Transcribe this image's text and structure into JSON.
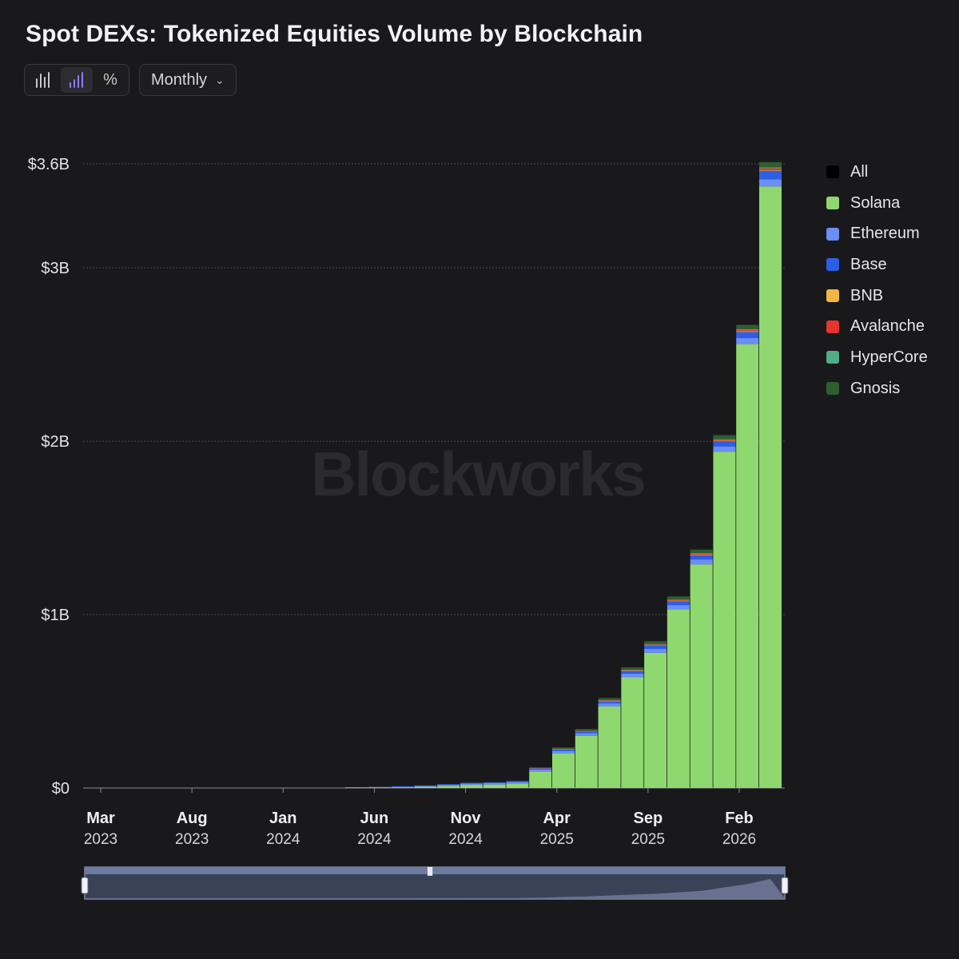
{
  "title": "Spot DEXs: Tokenized Equities Volume by Blockchain",
  "toolbar": {
    "icons": [
      "bar-chart-icon",
      "stacked-bar-icon",
      "percent-icon"
    ],
    "active_index": 1,
    "percent_glyph": "%",
    "interval": "Monthly"
  },
  "watermark": "Blockworks",
  "colors": {
    "All": "#000000",
    "Solana": "#8fd86f",
    "Ethereum": "#6b8ef7",
    "Base": "#2e5ee6",
    "BNB": "#f2b543",
    "Avalanche": "#e8342e",
    "HyperCore": "#4fae86",
    "Gnosis": "#2d5e2f"
  },
  "chart_data": {
    "type": "bar",
    "stacked": true,
    "yaxis": {
      "ticks": [
        0,
        1,
        2,
        3,
        3.6
      ],
      "tick_labels": [
        "$0",
        "$1B",
        "$2B",
        "$3B",
        "$3.6B"
      ],
      "range": [
        0,
        3.6
      ],
      "unit": "B USD"
    },
    "xaxis": {
      "ticks": [
        {
          "month": "Mar",
          "year": "2023",
          "index": 0
        },
        {
          "month": "Aug",
          "year": "2023",
          "index": 5
        },
        {
          "month": "Jan",
          "year": "2024",
          "index": 10
        },
        {
          "month": "Jun",
          "year": "2024",
          "index": 15
        },
        {
          "month": "Nov",
          "year": "2024",
          "index": 20
        },
        {
          "month": "Apr",
          "year": "2025",
          "index": 25
        },
        {
          "month": "Sep",
          "year": "2025",
          "index": 30
        },
        {
          "month": "Feb",
          "year": "2026",
          "index": 35
        }
      ]
    },
    "categories": [
      "2023-03",
      "2023-04",
      "2023-05",
      "2023-06",
      "2023-07",
      "2023-08",
      "2023-09",
      "2023-10",
      "2023-11",
      "2023-12",
      "2024-01",
      "2024-02",
      "2024-03",
      "2024-04",
      "2024-05",
      "2024-06",
      "2024-07",
      "2024-08",
      "2024-09",
      "2024-10",
      "2024-11",
      "2024-12",
      "2025-01",
      "2025-02",
      "2025-03",
      "2025-04",
      "2025-05",
      "2025-06",
      "2025-07",
      "2025-08",
      "2025-09",
      "2025-10",
      "2025-11",
      "2025-12",
      "2026-01",
      "2026-02",
      "2026-03"
    ],
    "series": [
      {
        "name": "Solana",
        "values": [
          0,
          0,
          0,
          0,
          0,
          0,
          0,
          0,
          0,
          0,
          0,
          0,
          0,
          0,
          0,
          0.001,
          0.002,
          0.004,
          0.007,
          0.012,
          0.018,
          0.02,
          0.025,
          0.095,
          0.2,
          0.3,
          0.47,
          0.64,
          0.78,
          1.03,
          1.29,
          1.94,
          2.56,
          3.47,
          null,
          null,
          null
        ]
      },
      {
        "name": "Ethereum",
        "values": [
          0,
          0,
          0,
          0,
          0,
          0,
          0,
          0,
          0,
          0,
          0,
          0,
          0,
          0,
          0,
          0,
          0.001,
          0.002,
          0.004,
          0.006,
          0.008,
          0.009,
          0.01,
          0.012,
          0.014,
          0.016,
          0.018,
          0.02,
          0.022,
          0.025,
          0.028,
          0.03,
          0.035,
          0.04,
          null,
          null,
          null
        ]
      },
      {
        "name": "Base",
        "values": [
          0,
          0,
          0,
          0,
          0,
          0,
          0,
          0,
          0,
          0,
          0,
          0,
          0,
          0,
          0,
          0,
          0,
          0.001,
          0.002,
          0.003,
          0.003,
          0.004,
          0.005,
          0.006,
          0.008,
          0.01,
          0.012,
          0.015,
          0.02,
          0.022,
          0.025,
          0.03,
          0.035,
          0.05,
          null,
          null,
          null
        ]
      },
      {
        "name": "BNB",
        "values": [
          0,
          0,
          0,
          0,
          0,
          0,
          0,
          0,
          0,
          0,
          0,
          0,
          0,
          0,
          0,
          0,
          0,
          0,
          0,
          0,
          0,
          0,
          0,
          0.001,
          0.001,
          0.001,
          0.002,
          0.002,
          0.002,
          0.003,
          0.003,
          0.003,
          0.004,
          0.004,
          null,
          null,
          null
        ]
      },
      {
        "name": "Avalanche",
        "values": [
          0,
          0,
          0,
          0,
          0,
          0,
          0,
          0,
          0,
          0,
          0,
          0,
          0,
          0,
          0,
          0,
          0,
          0,
          0,
          0,
          0,
          0,
          0,
          0.001,
          0.002,
          0.002,
          0.003,
          0.003,
          0.004,
          0.004,
          0.005,
          0.006,
          0.007,
          0.01,
          null,
          null,
          null
        ]
      },
      {
        "name": "HyperCore",
        "values": [
          0,
          0,
          0,
          0,
          0,
          0,
          0,
          0,
          0,
          0,
          0,
          0,
          0,
          0,
          0,
          0,
          0,
          0,
          0,
          0,
          0,
          0,
          0,
          0,
          0.001,
          0.001,
          0.002,
          0.002,
          0.003,
          0.003,
          0.004,
          0.004,
          0.005,
          0.006,
          null,
          null,
          null
        ]
      },
      {
        "name": "Gnosis",
        "values": [
          0,
          0,
          0,
          0,
          0,
          0,
          0,
          0,
          0,
          0,
          0,
          0,
          0,
          0,
          0,
          0,
          0,
          0,
          0,
          0,
          0,
          0,
          0,
          0.004,
          0.008,
          0.01,
          0.012,
          0.014,
          0.016,
          0.018,
          0.02,
          0.022,
          0.025,
          0.03,
          null,
          null,
          null
        ]
      }
    ],
    "bar_start_index": 15,
    "legend": [
      "All",
      "Solana",
      "Ethereum",
      "Base",
      "BNB",
      "Avalanche",
      "HyperCore",
      "Gnosis"
    ],
    "legend_position": "right",
    "grid": true
  }
}
